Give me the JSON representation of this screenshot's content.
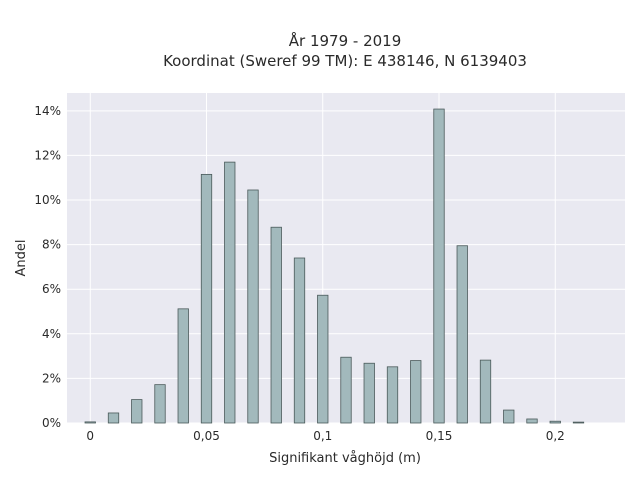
{
  "chart_data": {
    "type": "bar",
    "title": "År 1979 - 2019",
    "subtitle": "Koordinat (Sweref 99 TM): E 438146, N 6139403",
    "xlabel": "Signifikant våghöjd (m)",
    "ylabel": "Andel",
    "xlim": [
      -0.01,
      0.23
    ],
    "ylim": [
      0,
      0.148
    ],
    "x_ticks": [
      0,
      0.05,
      0.1,
      0.15,
      0.2
    ],
    "x_tick_labels": [
      "0",
      "0,05",
      "0,1",
      "0,15",
      "0,2"
    ],
    "y_ticks": [
      0,
      0.02,
      0.04,
      0.06,
      0.08,
      0.1,
      0.12,
      0.14
    ],
    "y_tick_labels": [
      "0%",
      "2%",
      "4%",
      "6%",
      "8%",
      "10%",
      "12%",
      "14%"
    ],
    "grid": true,
    "bar_color": "#a2b9bc",
    "bar_edge_color": "#4a5a5a",
    "plot_background": "#e9e9f1",
    "x": [
      0,
      0.01,
      0.02,
      0.03,
      0.04,
      0.05,
      0.06,
      0.07,
      0.08,
      0.09,
      0.1,
      0.11,
      0.12,
      0.13,
      0.14,
      0.15,
      0.16,
      0.17,
      0.18,
      0.19,
      0.2,
      0.21
    ],
    "values": [
      0.0005,
      0.0045,
      0.0105,
      0.0172,
      0.0512,
      0.1115,
      0.117,
      0.1045,
      0.0878,
      0.074,
      0.0573,
      0.0295,
      0.0268,
      0.0252,
      0.028,
      0.1408,
      0.0795,
      0.0282,
      0.0058,
      0.0018,
      0.0008,
      0.0004
    ]
  }
}
